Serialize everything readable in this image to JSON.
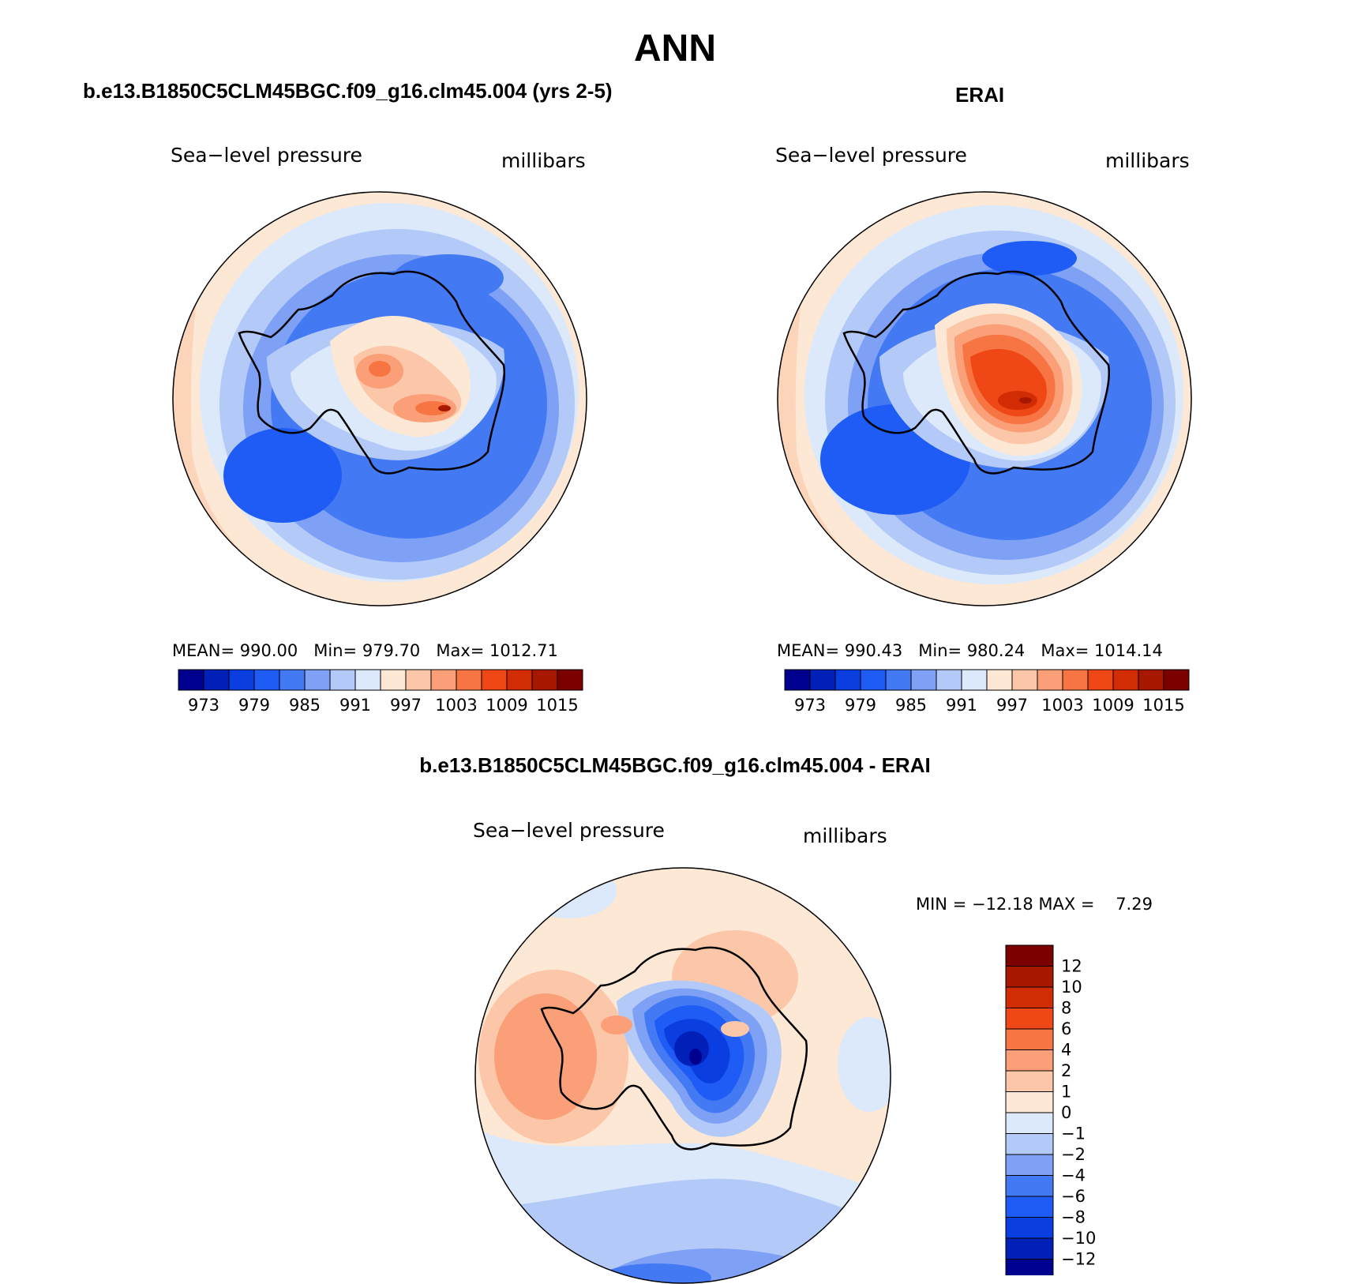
{
  "page": {
    "title": "ANN"
  },
  "panels": [
    {
      "id": "model",
      "case_title": "b.e13.B1850C5CLM45BGC.f09_g16.clm45.004 (yrs 2-5)",
      "variable": "Sea−level pressure",
      "units": "millibars",
      "stats": {
        "mean_label": "MEAN=",
        "mean": "990.00",
        "min_label": "Min=",
        "min": "979.70",
        "max_label": "Max=",
        "max": "1012.71"
      }
    },
    {
      "id": "obs",
      "case_title": "ERAI",
      "variable": "Sea−level pressure",
      "units": "millibars",
      "stats": {
        "mean_label": "MEAN=",
        "mean": "990.43",
        "min_label": "Min=",
        "min": "980.24",
        "max_label": "Max=",
        "max": "1014.14"
      }
    },
    {
      "id": "diff",
      "case_title": "b.e13.B1850C5CLM45BGC.f09_g16.clm45.004 - ERAI",
      "variable": "Sea−level pressure",
      "units": "millibars",
      "stats_text": "MIN = −12.18 MAX =    7.29"
    }
  ],
  "colorbars": {
    "absolute": {
      "colors": [
        "#00008f",
        "#0020b8",
        "#0a3ee0",
        "#1f5cf5",
        "#4479f4",
        "#7ea1f5",
        "#b3caf8",
        "#dce9fa",
        "#fde8d5",
        "#fcc7a9",
        "#fb9f78",
        "#f77543",
        "#f04716",
        "#d22c05",
        "#a81800",
        "#7d0000"
      ],
      "labels": [
        "973",
        "979",
        "985",
        "991",
        "997",
        "1003",
        "1009",
        "1015"
      ]
    },
    "difference": {
      "colors": [
        "#00008f",
        "#0020b8",
        "#0a3ee0",
        "#1f5cf5",
        "#4479f4",
        "#7ea1f5",
        "#b3caf8",
        "#dce9fa",
        "#fde8d5",
        "#fcc7a9",
        "#fb9f78",
        "#f77543",
        "#f04716",
        "#d22c05",
        "#a81800",
        "#7d0000"
      ],
      "labels": [
        "12",
        "10",
        "8",
        "6",
        "4",
        "2",
        "1",
        "0",
        "−1",
        "−2",
        "−4",
        "−6",
        "−8",
        "−10",
        "−12"
      ]
    }
  },
  "map_data": {
    "projection": "south polar stereographic",
    "field": "sea-level pressure, annual mean"
  }
}
